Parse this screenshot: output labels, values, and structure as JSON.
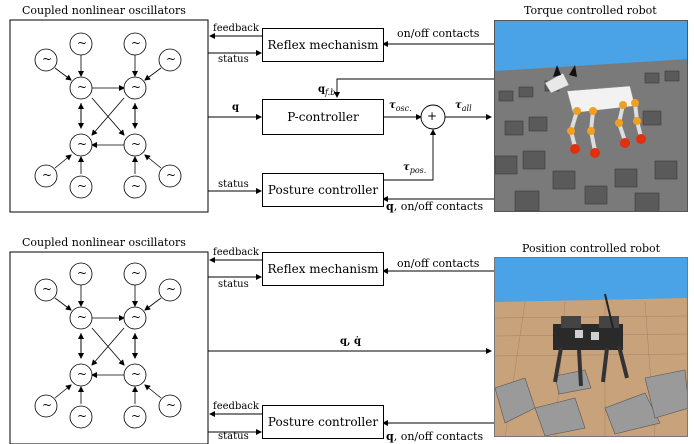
{
  "top": {
    "osc_title": "Coupled nonlinear oscillators",
    "robot_title": "Torque controlled robot",
    "reflex_box": "Reflex mechanism",
    "pcontrol_box": "P-controller",
    "posture_box": "Posture controller",
    "label_feedback": "feedback",
    "label_status_reflex": "status",
    "label_status_posture": "status",
    "label_onoff": "on/off contacts",
    "label_q_fb": "q",
    "label_q_fb_sub": "f.b.",
    "label_q": "q",
    "label_tau_osc": "τ",
    "label_tau_osc_sub": "osc.",
    "label_tau_all": "τ",
    "label_tau_all_sub": "all",
    "label_tau_pos": "τ",
    "label_tau_pos_sub": "pos.",
    "sum_symbol": "+",
    "label_q_contacts_q": "q",
    "label_q_contacts_rest": ", on/off contacts"
  },
  "bottom": {
    "osc_title": "Coupled nonlinear oscillators",
    "robot_title": "Position controlled robot",
    "reflex_box": "Reflex mechanism",
    "posture_box": "Posture controller",
    "label_feedback_reflex": "feedback",
    "label_status_reflex": "status",
    "label_feedback_posture": "feedback",
    "label_status_posture": "status",
    "label_onoff": "on/off contacts",
    "label_q_qdot": "q, q̇",
    "label_q_contacts_q": "q",
    "label_q_contacts_rest": ", on/off contacts"
  },
  "oscillator_symbol": "~",
  "colors": {
    "sky": "#4aa3e6",
    "floor_top": "#8a8a8a",
    "robot_body": "#f2f2f2",
    "robot_joint": "#f0a020",
    "robot_foot": "#e03010",
    "sand": "#c8a27a",
    "robot2": "#2a2a2a"
  }
}
